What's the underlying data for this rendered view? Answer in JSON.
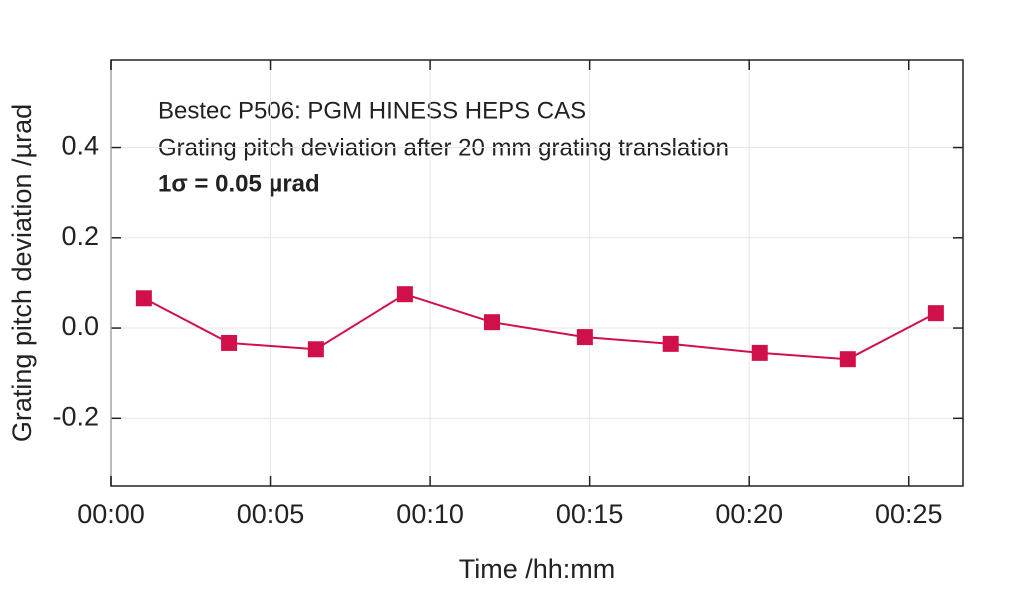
{
  "chart_data": {
    "type": "line",
    "annotations": [
      "Bestec P506: PGM HINESS HEPS CAS",
      "Grating pitch deviation after 20 mm grating translation",
      "1σ = 0.05 µrad"
    ],
    "x_label": "Time /hh:mm",
    "y_label": "Grating pitch deviation /µrad",
    "x": [
      1.03,
      3.7,
      6.42,
      9.21,
      11.94,
      14.85,
      17.54,
      20.33,
      23.09,
      25.85
    ],
    "series": [
      {
        "name": "Grating pitch deviation",
        "color": "#d0104a",
        "values": [
          0.066,
          -0.033,
          -0.047,
          0.075,
          0.013,
          -0.02,
          -0.035,
          -0.055,
          -0.069,
          0.033
        ]
      }
    ],
    "xlim": [
      0,
      26.7
    ],
    "xticks": [
      {
        "value": 0,
        "label": "00:00"
      },
      {
        "value": 5,
        "label": "00:05"
      },
      {
        "value": 10,
        "label": "00:10"
      },
      {
        "value": 15,
        "label": "00:15"
      },
      {
        "value": 20,
        "label": "00:20"
      },
      {
        "value": 25,
        "label": "00:25"
      }
    ],
    "ylim": [
      -0.35,
      0.594
    ],
    "yticks": [
      -0.2,
      {
        "value": 0,
        "label": "0.0"
      },
      0.2,
      0.4
    ],
    "grid": true
  }
}
